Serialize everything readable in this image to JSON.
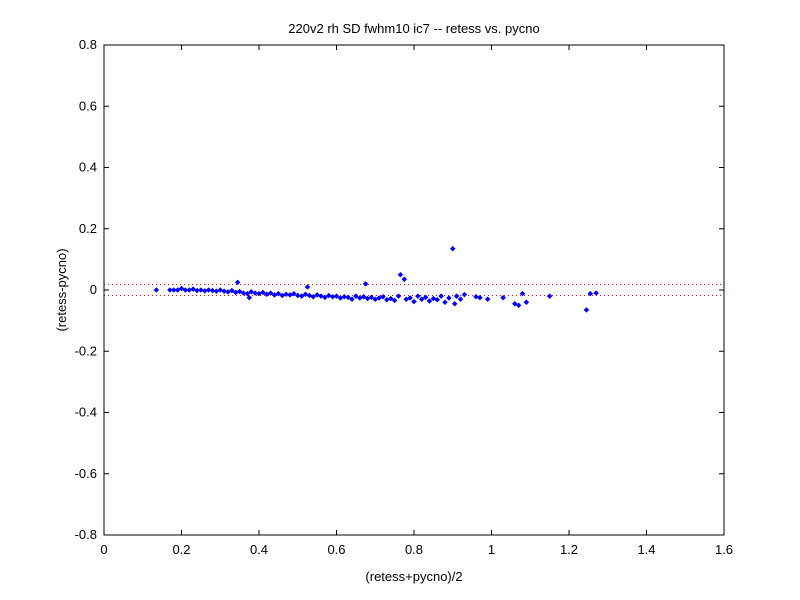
{
  "chart_data": {
    "type": "scatter",
    "title": "220v2 rh SD fwhm10 ic7 -- retess vs. pycno",
    "xlabel": "(retess+pycno)/2",
    "ylabel": "(retess-pycno)",
    "xlim": [
      0,
      1.6
    ],
    "ylim": [
      -0.8,
      0.8
    ],
    "x_ticks": [
      0,
      0.2,
      0.4,
      0.6,
      0.8,
      1,
      1.2,
      1.4,
      1.6
    ],
    "x_tick_labels": [
      "0",
      "0.2",
      "0.4",
      "0.6",
      "0.8",
      "1",
      "1.2",
      "1.4",
      "1.6"
    ],
    "y_ticks": [
      -0.8,
      -0.6,
      -0.4,
      -0.2,
      0,
      0.2,
      0.4,
      0.6,
      0.8
    ],
    "y_tick_labels": [
      "-0.8",
      "-0.6",
      "-0.4",
      "-0.2",
      "0",
      "0.2",
      "0.4",
      "0.6",
      "0.8"
    ],
    "grid": false,
    "marker_color": "#0000ff",
    "reference_line_color": "#ff0000",
    "reference_lines_y": [
      0.018,
      -0.018
    ],
    "series": [
      {
        "points": [
          [
            0.135,
            0.0
          ],
          [
            0.17,
            0.0
          ],
          [
            0.18,
            0.0
          ],
          [
            0.19,
            0.0
          ],
          [
            0.2,
            0.005
          ],
          [
            0.21,
            0.0
          ],
          [
            0.22,
            0.0
          ],
          [
            0.23,
            0.003
          ],
          [
            0.24,
            -0.002
          ],
          [
            0.25,
            0.0
          ],
          [
            0.26,
            -0.003
          ],
          [
            0.27,
            0.0
          ],
          [
            0.28,
            -0.002
          ],
          [
            0.29,
            -0.004
          ],
          [
            0.3,
            0.0
          ],
          [
            0.31,
            -0.004
          ],
          [
            0.32,
            -0.006
          ],
          [
            0.33,
            -0.002
          ],
          [
            0.34,
            -0.008
          ],
          [
            0.345,
            0.025
          ],
          [
            0.35,
            -0.005
          ],
          [
            0.36,
            -0.01
          ],
          [
            0.37,
            -0.012
          ],
          [
            0.375,
            -0.025
          ],
          [
            0.38,
            -0.006
          ],
          [
            0.39,
            -0.01
          ],
          [
            0.4,
            -0.012
          ],
          [
            0.41,
            -0.008
          ],
          [
            0.42,
            -0.014
          ],
          [
            0.43,
            -0.01
          ],
          [
            0.44,
            -0.016
          ],
          [
            0.45,
            -0.012
          ],
          [
            0.46,
            -0.018
          ],
          [
            0.47,
            -0.014
          ],
          [
            0.48,
            -0.016
          ],
          [
            0.49,
            -0.012
          ],
          [
            0.5,
            -0.018
          ],
          [
            0.51,
            -0.02
          ],
          [
            0.52,
            -0.014
          ],
          [
            0.525,
            0.01
          ],
          [
            0.53,
            -0.018
          ],
          [
            0.54,
            -0.022
          ],
          [
            0.55,
            -0.016
          ],
          [
            0.56,
            -0.02
          ],
          [
            0.57,
            -0.024
          ],
          [
            0.58,
            -0.018
          ],
          [
            0.59,
            -0.022
          ],
          [
            0.6,
            -0.02
          ],
          [
            0.61,
            -0.026
          ],
          [
            0.62,
            -0.022
          ],
          [
            0.63,
            -0.024
          ],
          [
            0.64,
            -0.03
          ],
          [
            0.65,
            -0.02
          ],
          [
            0.66,
            -0.026
          ],
          [
            0.67,
            -0.022
          ],
          [
            0.675,
            0.02
          ],
          [
            0.68,
            -0.028
          ],
          [
            0.69,
            -0.024
          ],
          [
            0.7,
            -0.03
          ],
          [
            0.71,
            -0.026
          ],
          [
            0.72,
            -0.022
          ],
          [
            0.73,
            -0.032
          ],
          [
            0.74,
            -0.028
          ],
          [
            0.75,
            -0.034
          ],
          [
            0.76,
            -0.02
          ],
          [
            0.765,
            0.05
          ],
          [
            0.775,
            0.035
          ],
          [
            0.78,
            -0.03
          ],
          [
            0.79,
            -0.026
          ],
          [
            0.8,
            -0.038
          ],
          [
            0.81,
            -0.02
          ],
          [
            0.82,
            -0.03
          ],
          [
            0.83,
            -0.024
          ],
          [
            0.84,
            -0.036
          ],
          [
            0.85,
            -0.028
          ],
          [
            0.86,
            -0.032
          ],
          [
            0.87,
            -0.02
          ],
          [
            0.88,
            -0.04
          ],
          [
            0.89,
            -0.026
          ],
          [
            0.9,
            0.135
          ],
          [
            0.905,
            -0.045
          ],
          [
            0.91,
            -0.02
          ],
          [
            0.92,
            -0.03
          ],
          [
            0.93,
            -0.015
          ],
          [
            0.96,
            -0.022
          ],
          [
            0.97,
            -0.025
          ],
          [
            0.99,
            -0.03
          ],
          [
            1.03,
            -0.025
          ],
          [
            1.06,
            -0.045
          ],
          [
            1.07,
            -0.05
          ],
          [
            1.08,
            -0.012
          ],
          [
            1.09,
            -0.04
          ],
          [
            1.15,
            -0.02
          ],
          [
            1.245,
            -0.065
          ],
          [
            1.255,
            -0.012
          ],
          [
            1.27,
            -0.01
          ]
        ]
      }
    ]
  }
}
